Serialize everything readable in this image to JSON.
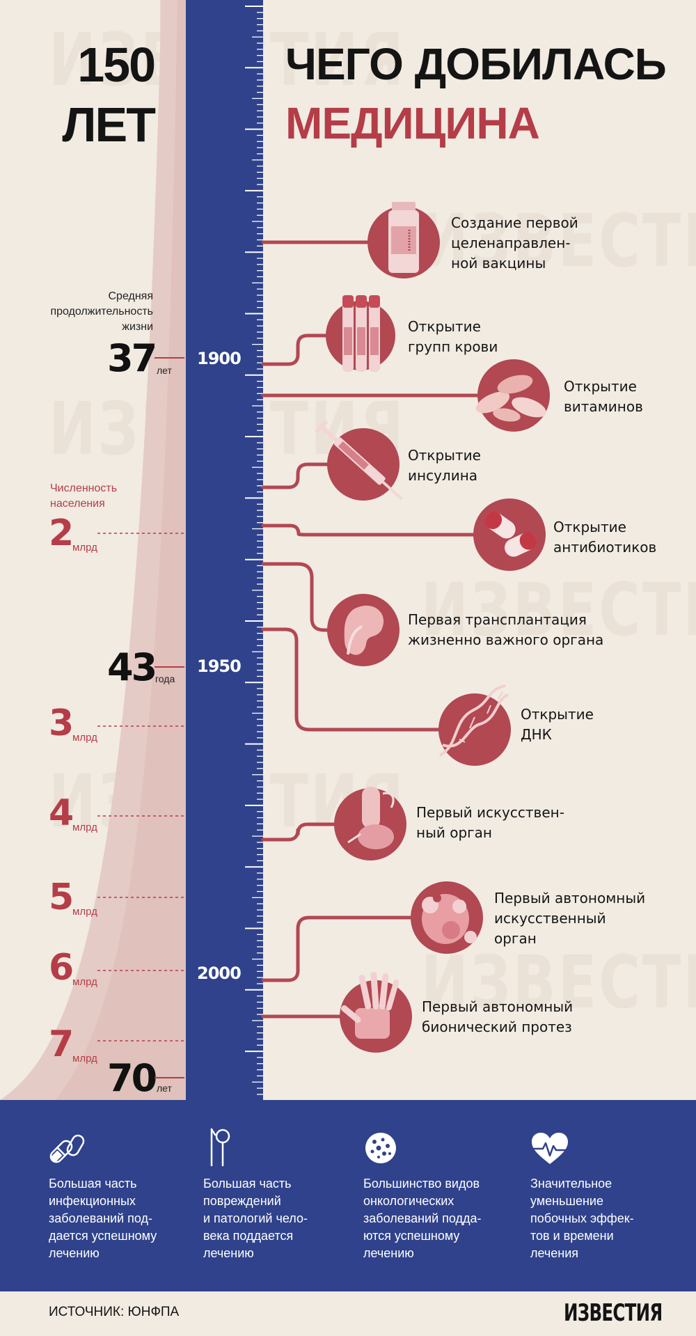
{
  "title": {
    "left_line1": "150",
    "left_line2": "ЛЕТ",
    "right_line1": "ЧЕГО ДОБИЛАСЬ",
    "right_line2": "МЕДИЦИНА"
  },
  "watermark": "ИЗВЕСТИЯ",
  "life_expectancy": {
    "caption": "Средняя продолжительность жизни",
    "caption_lines": [
      "Средняя",
      "продолжительность",
      "жизни"
    ],
    "points": [
      {
        "value": "37",
        "unit": "лет"
      },
      {
        "value": "43",
        "unit": "года"
      },
      {
        "value": "70",
        "unit": "лет"
      }
    ]
  },
  "population": {
    "caption_lines": [
      "Численность",
      "населения"
    ],
    "points": [
      {
        "value": "2",
        "unit": "млрд"
      },
      {
        "value": "3",
        "unit": "млрд"
      },
      {
        "value": "4",
        "unit": "млрд"
      },
      {
        "value": "5",
        "unit": "млрд"
      },
      {
        "value": "6",
        "unit": "млрд"
      },
      {
        "value": "7",
        "unit": "млрд"
      }
    ]
  },
  "years": [
    "1900",
    "1950",
    "2000"
  ],
  "events": [
    {
      "lines": [
        "Создание первой",
        "целенаправлен-",
        "ной вакцины"
      ],
      "icon": "vaccine-vial-icon"
    },
    {
      "lines": [
        "Открытие",
        "групп крови"
      ],
      "icon": "blood-tubes-icon"
    },
    {
      "lines": [
        "Открытие",
        "витаминов"
      ],
      "icon": "vitamin-capsules-icon"
    },
    {
      "lines": [
        "Открытие",
        "инсулина"
      ],
      "icon": "syringe-icon"
    },
    {
      "lines": [
        "Открытие",
        "антибиотиков"
      ],
      "icon": "antibiotic-pills-icon"
    },
    {
      "lines": [
        "Первая трансплантация",
        "жизненно важного органа"
      ],
      "icon": "kidney-icon"
    },
    {
      "lines": [
        "Открытие",
        "ДНК"
      ],
      "icon": "dna-icon"
    },
    {
      "lines": [
        "Первый искусствен-",
        "ный орган"
      ],
      "icon": "artificial-organ-icon"
    },
    {
      "lines": [
        "Первый автономный",
        "искусственный",
        "орган"
      ],
      "icon": "artificial-heart-icon"
    },
    {
      "lines": [
        "Первый автономный",
        "бионический протез"
      ],
      "icon": "bionic-hand-icon"
    }
  ],
  "benefits": [
    {
      "lines": [
        "Большая часть",
        "инфекционных",
        "заболеваний под-",
        "дается успешному",
        "лечению"
      ],
      "icon": "pills-icon"
    },
    {
      "lines": [
        "Большая часть",
        "повреждений",
        "и патологий чело-",
        "века поддается",
        "лечению"
      ],
      "icon": "surgical-instruments-icon"
    },
    {
      "lines": [
        "Большинство видов",
        "онкологических",
        "заболеваний подда-",
        "ются успешному",
        "лечению"
      ],
      "icon": "cancer-cell-icon"
    },
    {
      "lines": [
        "Значительное",
        "уменьшение",
        "побочных эффек-",
        "тов и времени",
        "лечения"
      ],
      "icon": "heartbeat-icon"
    }
  ],
  "source": "ИСТОЧНИК: ЮНФПА",
  "brand": "ИЗВЕСТИЯ",
  "colors": {
    "background": "#f1ebe2",
    "scale_blue": "#2f428b",
    "accent_red": "#b43d47",
    "circle_red": "#b14852",
    "curve_pink": "#e3c6c0"
  }
}
